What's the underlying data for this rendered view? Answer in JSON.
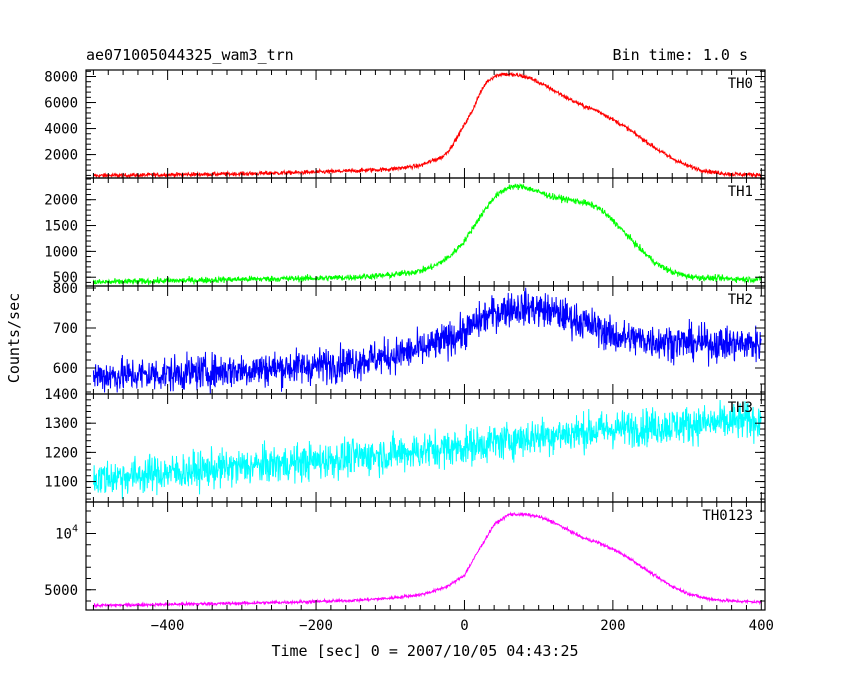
{
  "header": {
    "title": "ae071005044325_wam3_trn",
    "bin_time": "Bin time: 1.0 s"
  },
  "chart_data": {
    "type": "line",
    "title": "ae071005044325_wam3_trn",
    "subtitle": "Bin time: 1.0 s",
    "xlabel": "Time [sec] 0 = 2007/10/05 04:43:25",
    "ylabel": "Counts/sec",
    "xlim": [
      -510,
      405
    ],
    "x_ticks": [
      -400,
      -200,
      0,
      200,
      400
    ],
    "x_tick_labels": [
      "−400",
      "−200",
      "0",
      "200",
      "400"
    ],
    "grid": false,
    "panels": [
      {
        "name": "TH0",
        "color": "#ff0000",
        "ylim": [
          200,
          8500
        ],
        "y_ticks": [
          2000,
          4000,
          6000,
          8000
        ],
        "y_tick_labels": [
          "2000",
          "4000",
          "6000",
          "8000"
        ],
        "noise": 80,
        "x": [
          -500,
          -400,
          -300,
          -200,
          -150,
          -100,
          -60,
          -40,
          -30,
          -20,
          -10,
          0,
          10,
          20,
          30,
          40,
          50,
          60,
          70,
          80,
          90,
          100,
          120,
          140,
          160,
          180,
          200,
          220,
          240,
          260,
          280,
          300,
          320,
          340,
          360,
          380,
          400
        ],
        "values": [
          380,
          450,
          520,
          650,
          750,
          880,
          1150,
          1600,
          1800,
          2400,
          3300,
          4300,
          5300,
          6600,
          7600,
          8000,
          8200,
          8150,
          8100,
          8000,
          7850,
          7550,
          6950,
          6300,
          5750,
          5350,
          4700,
          4000,
          3200,
          2400,
          1700,
          1150,
          800,
          600,
          500,
          470,
          450
        ]
      },
      {
        "name": "TH1",
        "color": "#00ff00",
        "ylim": [
          330,
          2420
        ],
        "y_ticks": [
          500,
          1000,
          1500,
          2000
        ],
        "y_tick_labels": [
          "500",
          "1000",
          "1500",
          "2000"
        ],
        "noise": 30,
        "x": [
          -500,
          -400,
          -300,
          -200,
          -150,
          -100,
          -60,
          -40,
          -20,
          0,
          20,
          40,
          60,
          80,
          100,
          120,
          140,
          160,
          180,
          200,
          220,
          240,
          260,
          280,
          300,
          320,
          340,
          360,
          380,
          400
        ],
        "values": [
          400,
          430,
          460,
          480,
          500,
          540,
          620,
          720,
          900,
          1200,
          1650,
          2050,
          2250,
          2250,
          2150,
          2050,
          2000,
          1950,
          1850,
          1600,
          1300,
          1000,
          750,
          600,
          520,
          490,
          480,
          470,
          460,
          460
        ]
      },
      {
        "name": "TH2",
        "color": "#0000ff",
        "ylim": [
          535,
          805
        ],
        "y_ticks": [
          600,
          700,
          800
        ],
        "y_tick_labels": [
          "600",
          "700",
          "800"
        ],
        "noise": 22,
        "x": [
          -500,
          -400,
          -300,
          -200,
          -150,
          -100,
          -50,
          0,
          30,
          60,
          90,
          120,
          150,
          180,
          200,
          240,
          280,
          320,
          360,
          400
        ],
        "values": [
          580,
          585,
          595,
          605,
          615,
          630,
          650,
          690,
          730,
          750,
          750,
          740,
          720,
          700,
          680,
          670,
          665,
          662,
          660,
          660
        ]
      },
      {
        "name": "TH3",
        "color": "#00ffff",
        "ylim": [
          1030,
          1400
        ],
        "y_ticks": [
          1100,
          1200,
          1300,
          1400
        ],
        "y_tick_labels": [
          "1100",
          "1200",
          "1300",
          "1400"
        ],
        "noise": 32,
        "x": [
          -500,
          -400,
          -300,
          -200,
          -100,
          0,
          100,
          200,
          300,
          400
        ],
        "values": [
          1110,
          1130,
          1150,
          1170,
          1195,
          1220,
          1255,
          1280,
          1295,
          1310
        ]
      },
      {
        "name": "TH0123",
        "color": "#ff00ff",
        "ylim": [
          3200,
          12800
        ],
        "y_ticks": [
          5000,
          10000
        ],
        "y_tick_labels": [
          "5000",
          "10^4"
        ],
        "noise": 70,
        "x": [
          -500,
          -400,
          -300,
          -200,
          -150,
          -100,
          -60,
          -40,
          -20,
          0,
          20,
          40,
          60,
          80,
          100,
          120,
          140,
          160,
          180,
          200,
          220,
          240,
          260,
          280,
          300,
          320,
          340,
          360,
          380,
          400
        ],
        "values": [
          3600,
          3700,
          3800,
          3950,
          4050,
          4250,
          4550,
          4900,
          5400,
          6300,
          8600,
          10800,
          11700,
          11700,
          11500,
          11000,
          10300,
          9600,
          9200,
          8600,
          7900,
          7000,
          6100,
          5300,
          4700,
          4300,
          4100,
          4000,
          3950,
          3900
        ]
      }
    ]
  }
}
